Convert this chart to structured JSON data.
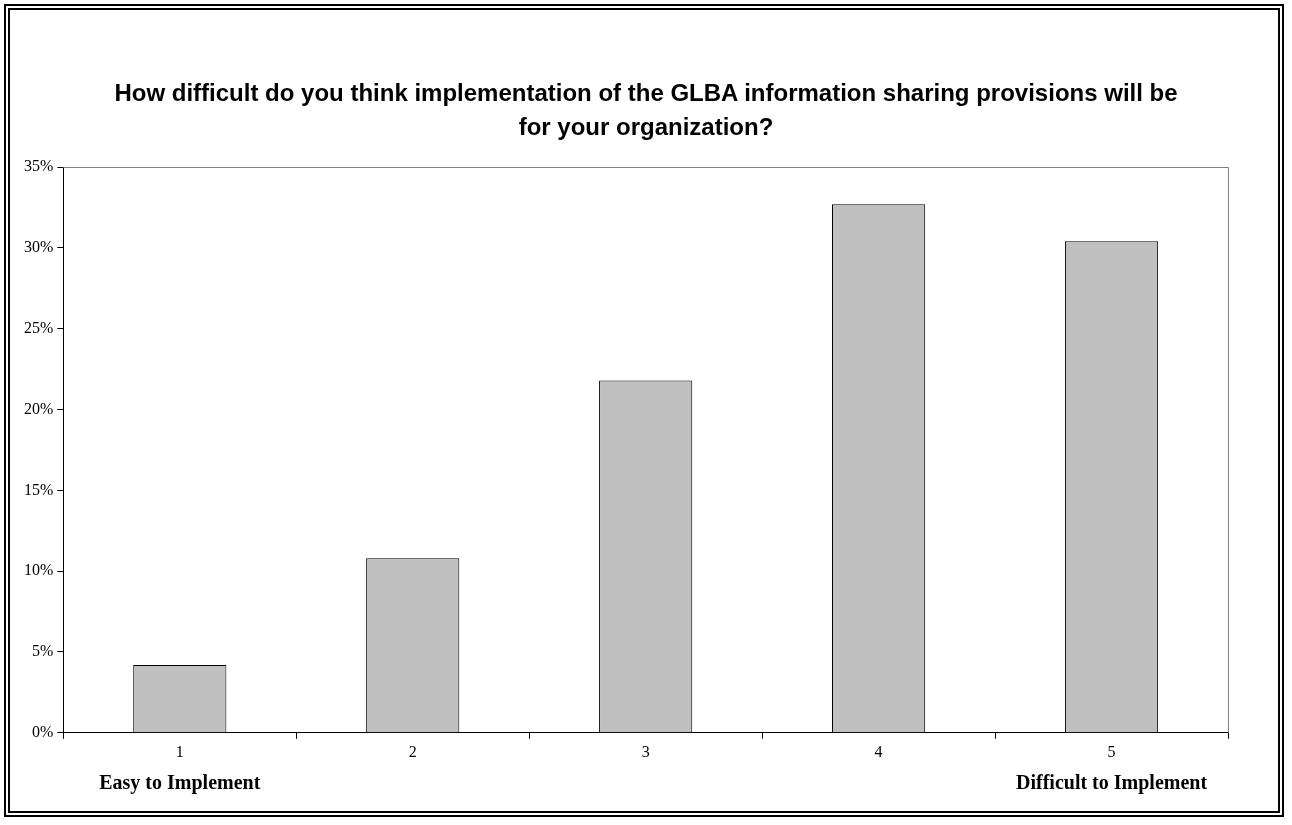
{
  "chart_data": {
    "type": "bar",
    "title": "How difficult do you think implementation of the GLBA information sharing provisions will be for your organization?",
    "categories": [
      "1",
      "2",
      "3",
      "4",
      "5"
    ],
    "values": [
      4.2,
      10.8,
      21.8,
      32.7,
      30.4
    ],
    "color": "#c0c0c0",
    "ylim": [
      0,
      35
    ],
    "yticks": [
      {
        "value": 0,
        "label": "0%"
      },
      {
        "value": 5,
        "label": "5%"
      },
      {
        "value": 10,
        "label": "10%"
      },
      {
        "value": 15,
        "label": "15%"
      },
      {
        "value": 20,
        "label": "20%"
      },
      {
        "value": 25,
        "label": "25%"
      },
      {
        "value": 30,
        "label": "30%"
      },
      {
        "value": 35,
        "label": "35%"
      }
    ],
    "annotations": [
      "Easy to Implement",
      "Difficult to Implement"
    ],
    "grid": false,
    "legend": false
  }
}
